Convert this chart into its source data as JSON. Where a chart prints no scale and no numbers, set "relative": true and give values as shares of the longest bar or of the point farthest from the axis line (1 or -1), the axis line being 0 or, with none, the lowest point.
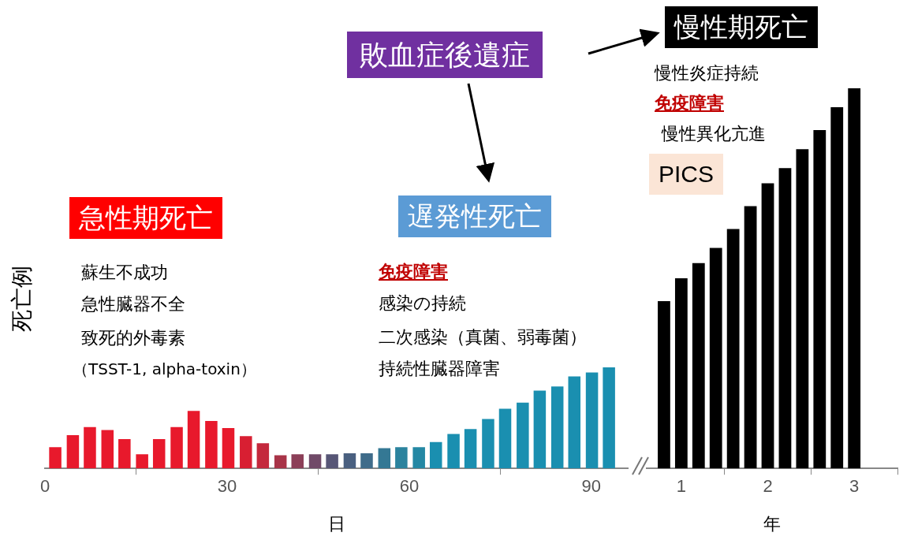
{
  "chart_data": [
    {
      "type": "bar",
      "relative": true,
      "xlabel": "日",
      "ylabel": "死亡例",
      "xlim": [
        0,
        96
      ],
      "xticks": [
        0,
        30,
        60,
        90
      ],
      "x": [
        1.7,
        4.6,
        7.4,
        10.3,
        13.1,
        16.0,
        18.8,
        21.7,
        24.5,
        27.4,
        30.2,
        33.1,
        35.9,
        38.8,
        41.6,
        44.5,
        47.3,
        50.2,
        53.0,
        55.9,
        58.7,
        61.6,
        64.4,
        67.3,
        70.1,
        73.0,
        75.8,
        78.7,
        81.5,
        84.4,
        87.2,
        90.1,
        92.9
      ],
      "values": [
        0.21,
        0.33,
        0.41,
        0.38,
        0.29,
        0.14,
        0.29,
        0.41,
        0.57,
        0.47,
        0.4,
        0.32,
        0.25,
        0.13,
        0.14,
        0.14,
        0.14,
        0.15,
        0.15,
        0.2,
        0.21,
        0.21,
        0.26,
        0.34,
        0.39,
        0.49,
        0.59,
        0.65,
        0.77,
        0.81,
        0.91,
        0.95,
        1
      ],
      "colors": [
        "#e8192c",
        "#e8192c",
        "#e8192c",
        "#e8192c",
        "#e8192c",
        "#e8192c",
        "#e8192c",
        "#e8192c",
        "#e8192c",
        "#e8192c",
        "#e8192c",
        "#d81f32",
        "#c4283c",
        "#a83448",
        "#8c3f58",
        "#704a68",
        "#575676",
        "#4a6080",
        "#3f6c8a",
        "#347894",
        "#2b839e",
        "#2488a4",
        "#1a8fb0",
        "#1a8fb0",
        "#1a8fb0",
        "#1a8fb0",
        "#1a8fb0",
        "#1a8fb0",
        "#1a8fb0",
        "#1a8fb0",
        "#1a8fb0",
        "#1a8fb0",
        "#1a8fb0"
      ],
      "annotations": [
        "急性期死亡",
        "蘇生不成功",
        "急性臓器不全",
        "致死的外毒素",
        "（TSST-1, alpha-toxin）",
        "遅発性死亡",
        "免疫障害",
        "感染の持続",
        "二次感染（真菌、弱毒菌）",
        "持続性臓器障害",
        "敗血症後遺症"
      ]
    },
    {
      "type": "bar",
      "relative": true,
      "xlabel": "年",
      "xlim": [
        0.6,
        3.5
      ],
      "xticks": [
        1,
        2,
        3
      ],
      "x": [
        0.8,
        1.0,
        1.2,
        1.4,
        1.6,
        1.8,
        2.0,
        2.2,
        2.4,
        2.6,
        2.8,
        3.0
      ],
      "values": [
        0.44,
        0.5,
        0.54,
        0.58,
        0.63,
        0.69,
        0.75,
        0.79,
        0.84,
        0.89,
        0.95,
        1
      ],
      "colors": [
        "#000000",
        "#000000",
        "#000000",
        "#000000",
        "#000000",
        "#000000",
        "#000000",
        "#000000",
        "#000000",
        "#000000",
        "#000000",
        "#000000"
      ],
      "annotations": [
        "慢性期死亡",
        "慢性炎症持続",
        "免疫障害",
        "慢性異化亢進",
        "PICS"
      ]
    }
  ]
}
